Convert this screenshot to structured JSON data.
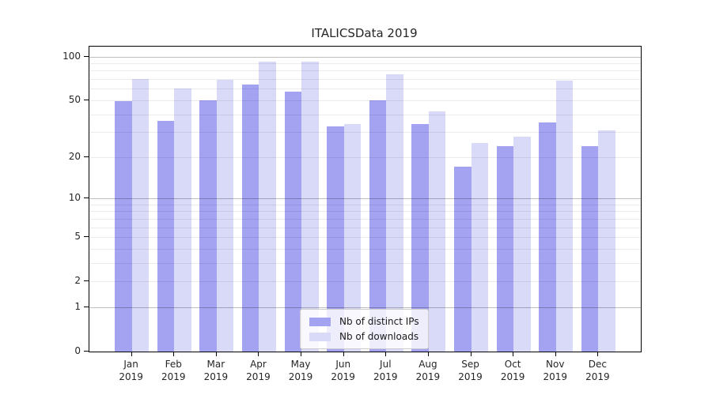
{
  "chart_data": {
    "type": "bar",
    "title": "ITALICSData 2019",
    "categories_line1": [
      "Jan",
      "Feb",
      "Mar",
      "Apr",
      "May",
      "Jun",
      "Jul",
      "Aug",
      "Sep",
      "Oct",
      "Nov",
      "Dec"
    ],
    "categories_line2": "2019",
    "series": [
      {
        "name": "Nb of distinct IPs",
        "color": "#a3a3f1",
        "values": [
          49,
          36,
          50,
          64,
          57,
          33,
          50,
          34,
          17,
          24,
          35,
          24
        ]
      },
      {
        "name": "Nb of downloads",
        "color": "#d9d9f8",
        "values": [
          70,
          60,
          69,
          92,
          92,
          34,
          76,
          42,
          25,
          28,
          68,
          31
        ]
      }
    ],
    "y_axis": {
      "scale": "symlog-log1p",
      "tick_labels": [
        0,
        1,
        2,
        5,
        10,
        20,
        50,
        100
      ],
      "gridlines_major": [
        1,
        10,
        100
      ],
      "gridlines_minor": [
        2,
        3,
        4,
        5,
        6,
        7,
        8,
        9,
        20,
        30,
        40,
        50,
        60,
        70,
        80,
        90
      ],
      "max": 117
    },
    "legend": {
      "position": "lower center"
    },
    "grid": true,
    "xlabel": "",
    "ylabel": ""
  },
  "colors": {
    "background": "#ffffff",
    "grid_major": "rgba(0,0,0,0.26)",
    "grid_minor": "rgba(0,0,0,0.08)",
    "axis": "#000000",
    "text": "#262626",
    "legend_border": "#cccccc",
    "legend_bg": "rgba(255,255,255,0.8)"
  }
}
